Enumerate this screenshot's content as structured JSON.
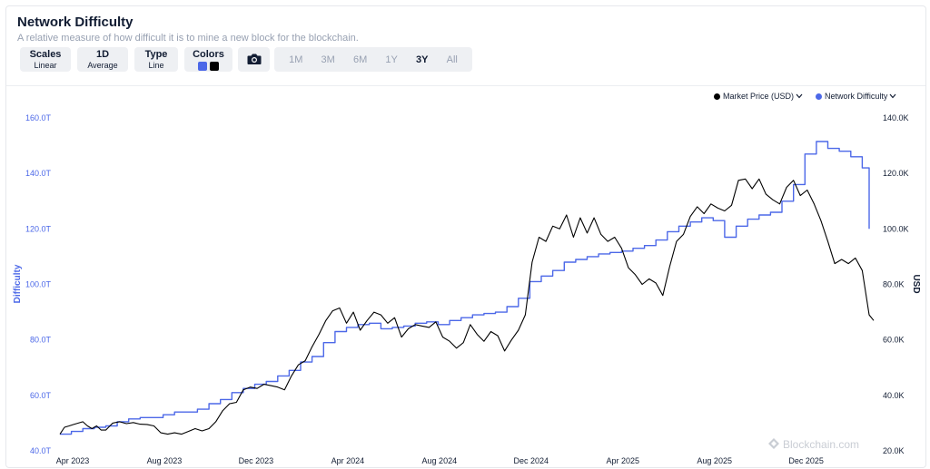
{
  "header": {
    "title": "Network Difficulty",
    "subtitle": "A relative measure of how difficult it is to mine a new block for the blockchain."
  },
  "controls": {
    "scales": {
      "label": "Scales",
      "value": "Linear"
    },
    "average": {
      "label": "1D",
      "value": "Average"
    },
    "type": {
      "label": "Type",
      "value": "Line"
    },
    "colors": {
      "label": "Colors",
      "swatch1": "#4c68e8",
      "swatch2": "#000000"
    },
    "camera_icon": "camera-icon",
    "ranges": [
      "1M",
      "3M",
      "6M",
      "1Y",
      "3Y",
      "All"
    ],
    "active_range": "3Y"
  },
  "watermark": "Blockchain.com",
  "chart_data": {
    "type": "line",
    "x_ticks": [
      "Apr 2023",
      "Aug 2023",
      "Dec 2023",
      "Apr 2024",
      "Aug 2024",
      "Dec 2024",
      "Apr 2025",
      "Aug 2025",
      "Dec 2025"
    ],
    "y_left": {
      "label": "Difficulty",
      "ticks": [
        "40.0T",
        "60.0T",
        "80.0T",
        "100.0T",
        "120.0T",
        "140.0T",
        "160.0T"
      ],
      "range": [
        40,
        160
      ],
      "unit": "T"
    },
    "y_right": {
      "label": "USD",
      "ticks": [
        "20.0K",
        "40.0K",
        "60.0K",
        "80.0K",
        "100.0K",
        "120.0K",
        "140.0K"
      ],
      "range": [
        20,
        140
      ],
      "unit": "K"
    },
    "x_range": [
      0,
      35.5
    ],
    "grid": false,
    "legend_position": "top-right",
    "series": [
      {
        "name": "Network Difficulty",
        "axis": "left",
        "color": "#4c68e8",
        "step": true,
        "points": [
          [
            0.0,
            46.0
          ],
          [
            0.5,
            47.0
          ],
          [
            1.0,
            48.0
          ],
          [
            1.5,
            48.5
          ],
          [
            2.0,
            49.0
          ],
          [
            2.5,
            50.5
          ],
          [
            3.0,
            51.5
          ],
          [
            3.5,
            52.0
          ],
          [
            4.0,
            52.0
          ],
          [
            4.5,
            53.0
          ],
          [
            5.0,
            54.0
          ],
          [
            5.5,
            54.0
          ],
          [
            6.0,
            55.0
          ],
          [
            6.5,
            57.0
          ],
          [
            7.0,
            58.5
          ],
          [
            7.5,
            61.0
          ],
          [
            8.0,
            62.5
          ],
          [
            8.5,
            64.0
          ],
          [
            9.0,
            65.0
          ],
          [
            9.5,
            67.0
          ],
          [
            10.0,
            69.0
          ],
          [
            10.5,
            72.0
          ],
          [
            11.0,
            74.0
          ],
          [
            11.5,
            79.0
          ],
          [
            12.0,
            83.0
          ],
          [
            12.5,
            84.5
          ],
          [
            13.0,
            85.5
          ],
          [
            13.5,
            86.0
          ],
          [
            14.0,
            84.0
          ],
          [
            14.5,
            84.5
          ],
          [
            15.0,
            85.0
          ],
          [
            15.5,
            86.0
          ],
          [
            16.0,
            86.5
          ],
          [
            16.5,
            85.5
          ],
          [
            17.0,
            87.0
          ],
          [
            17.5,
            88.0
          ],
          [
            18.0,
            89.0
          ],
          [
            18.5,
            89.5
          ],
          [
            19.0,
            90.0
          ],
          [
            19.5,
            92.0
          ],
          [
            20.0,
            95.0
          ],
          [
            20.5,
            101.0
          ],
          [
            21.0,
            103.0
          ],
          [
            21.5,
            105.0
          ],
          [
            22.0,
            108.0
          ],
          [
            22.5,
            109.0
          ],
          [
            23.0,
            110.0
          ],
          [
            23.5,
            111.0
          ],
          [
            24.0,
            111.5
          ],
          [
            24.5,
            112.0
          ],
          [
            25.0,
            113.0
          ],
          [
            25.5,
            114.0
          ],
          [
            26.0,
            116.0
          ],
          [
            26.5,
            119.0
          ],
          [
            27.0,
            121.0
          ],
          [
            27.5,
            122.5
          ],
          [
            28.0,
            124.0
          ],
          [
            28.5,
            123.0
          ],
          [
            29.0,
            117.0
          ],
          [
            29.5,
            121.0
          ],
          [
            30.0,
            123.5
          ],
          [
            30.5,
            125.0
          ],
          [
            31.0,
            126.0
          ],
          [
            31.5,
            130.0
          ],
          [
            32.0,
            136.0
          ],
          [
            32.5,
            147.0
          ],
          [
            33.0,
            151.5
          ],
          [
            33.5,
            149.0
          ],
          [
            34.0,
            148.0
          ],
          [
            34.5,
            146.0
          ],
          [
            35.0,
            142.0
          ],
          [
            35.3,
            120.0
          ]
        ]
      },
      {
        "name": "Market Price (USD)",
        "axis": "right",
        "color": "#000000",
        "step": false,
        "points": [
          [
            0.0,
            26.0
          ],
          [
            0.2,
            28.5
          ],
          [
            0.4,
            29.0
          ],
          [
            0.6,
            29.5
          ],
          [
            0.8,
            30.0
          ],
          [
            1.0,
            30.5
          ],
          [
            1.2,
            29.0
          ],
          [
            1.4,
            28.0
          ],
          [
            1.6,
            29.0
          ],
          [
            1.8,
            27.5
          ],
          [
            2.0,
            27.5
          ],
          [
            2.3,
            30.0
          ],
          [
            2.6,
            30.5
          ],
          [
            2.9,
            29.8
          ],
          [
            3.2,
            30.2
          ],
          [
            3.5,
            29.6
          ],
          [
            3.8,
            29.5
          ],
          [
            4.1,
            29.0
          ],
          [
            4.4,
            26.5
          ],
          [
            4.7,
            26.0
          ],
          [
            5.0,
            26.5
          ],
          [
            5.3,
            26.0
          ],
          [
            5.6,
            27.0
          ],
          [
            5.9,
            28.0
          ],
          [
            6.2,
            27.2
          ],
          [
            6.5,
            28.0
          ],
          [
            6.8,
            30.5
          ],
          [
            7.1,
            34.5
          ],
          [
            7.4,
            37.0
          ],
          [
            7.7,
            37.5
          ],
          [
            8.0,
            42.0
          ],
          [
            8.3,
            43.0
          ],
          [
            8.6,
            42.5
          ],
          [
            8.9,
            44.0
          ],
          [
            9.2,
            43.5
          ],
          [
            9.5,
            43.0
          ],
          [
            9.8,
            42.0
          ],
          [
            10.1,
            47.0
          ],
          [
            10.4,
            51.0
          ],
          [
            10.7,
            52.5
          ],
          [
            11.0,
            57.5
          ],
          [
            11.3,
            62.0
          ],
          [
            11.6,
            67.0
          ],
          [
            11.9,
            70.5
          ],
          [
            12.2,
            71.5
          ],
          [
            12.5,
            66.0
          ],
          [
            12.8,
            70.0
          ],
          [
            13.1,
            63.5
          ],
          [
            13.4,
            67.0
          ],
          [
            13.7,
            70.0
          ],
          [
            14.0,
            69.0
          ],
          [
            14.3,
            66.0
          ],
          [
            14.6,
            68.0
          ],
          [
            14.9,
            61.0
          ],
          [
            15.2,
            64.0
          ],
          [
            15.5,
            65.5
          ],
          [
            15.8,
            65.0
          ],
          [
            16.1,
            64.5
          ],
          [
            16.4,
            66.5
          ],
          [
            16.7,
            61.0
          ],
          [
            17.0,
            59.5
          ],
          [
            17.3,
            57.0
          ],
          [
            17.6,
            59.0
          ],
          [
            17.9,
            65.5
          ],
          [
            18.2,
            62.0
          ],
          [
            18.5,
            59.5
          ],
          [
            18.8,
            63.0
          ],
          [
            19.1,
            61.5
          ],
          [
            19.4,
            56.0
          ],
          [
            19.7,
            60.0
          ],
          [
            20.0,
            63.5
          ],
          [
            20.3,
            69.0
          ],
          [
            20.6,
            88.0
          ],
          [
            20.9,
            97.0
          ],
          [
            21.2,
            95.5
          ],
          [
            21.5,
            101.0
          ],
          [
            21.8,
            100.0
          ],
          [
            22.1,
            105.0
          ],
          [
            22.4,
            97.0
          ],
          [
            22.7,
            104.0
          ],
          [
            23.0,
            98.5
          ],
          [
            23.3,
            104.0
          ],
          [
            23.6,
            98.0
          ],
          [
            23.9,
            95.5
          ],
          [
            24.2,
            97.0
          ],
          [
            24.5,
            93.0
          ],
          [
            24.8,
            86.0
          ],
          [
            25.1,
            83.5
          ],
          [
            25.4,
            80.0
          ],
          [
            25.7,
            82.0
          ],
          [
            26.0,
            80.5
          ],
          [
            26.3,
            76.0
          ],
          [
            26.6,
            86.5
          ],
          [
            26.9,
            95.5
          ],
          [
            27.2,
            98.0
          ],
          [
            27.5,
            104.5
          ],
          [
            27.8,
            108.0
          ],
          [
            28.1,
            105.5
          ],
          [
            28.4,
            109.0
          ],
          [
            28.7,
            107.5
          ],
          [
            29.0,
            106.5
          ],
          [
            29.3,
            108.5
          ],
          [
            29.6,
            117.5
          ],
          [
            29.9,
            118.0
          ],
          [
            30.2,
            114.5
          ],
          [
            30.5,
            118.0
          ],
          [
            30.8,
            112.5
          ],
          [
            31.1,
            110.5
          ],
          [
            31.4,
            109.0
          ],
          [
            31.7,
            115.0
          ],
          [
            32.0,
            117.5
          ],
          [
            32.3,
            112.0
          ],
          [
            32.6,
            114.0
          ],
          [
            32.9,
            109.0
          ],
          [
            33.2,
            103.0
          ],
          [
            33.5,
            95.5
          ],
          [
            33.8,
            87.5
          ],
          [
            34.1,
            89.0
          ],
          [
            34.4,
            87.5
          ],
          [
            34.7,
            89.5
          ],
          [
            35.0,
            85.0
          ],
          [
            35.3,
            69.0
          ],
          [
            35.5,
            67.0
          ]
        ]
      }
    ]
  }
}
